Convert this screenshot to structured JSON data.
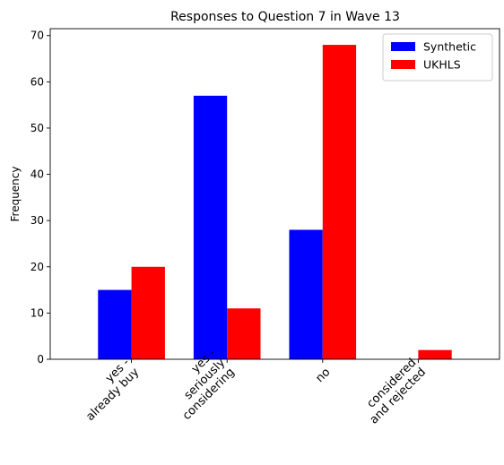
{
  "chart_data": {
    "type": "bar",
    "title": "Responses to Question 7 in Wave 13",
    "xlabel": "",
    "ylabel": "Frequency",
    "categories": [
      [
        "yes -",
        "already buy"
      ],
      [
        "yes -",
        "seriously",
        "considering"
      ],
      [
        "no"
      ],
      [
        "considered",
        "and rejected"
      ]
    ],
    "series": [
      {
        "name": "Synthetic",
        "color": "#0000ff",
        "values": [
          15,
          57,
          28,
          0
        ]
      },
      {
        "name": "UKHLS",
        "color": "#ff0000",
        "values": [
          20,
          11,
          68,
          2
        ]
      }
    ],
    "ylim": [
      0,
      71.5
    ],
    "yticks": [
      0,
      10,
      20,
      30,
      40,
      50,
      60,
      70
    ],
    "legend": "top-right",
    "grid": false
  }
}
